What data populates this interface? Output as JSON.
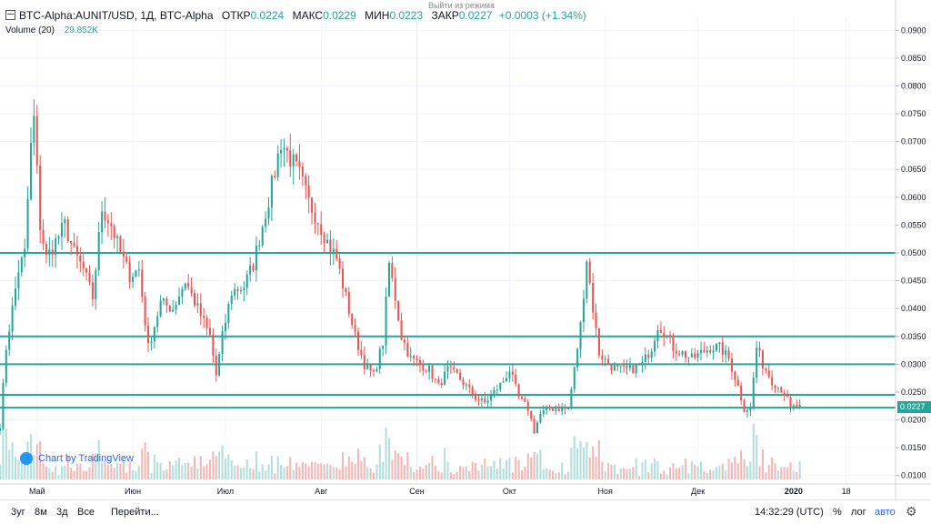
{
  "header": {
    "symbol": "BTC-Alpha:AUNIT/USD, 1Д, BTC-Alpha",
    "open_label": "ОТКР",
    "open": "0.0224",
    "high_label": "МАКС",
    "high": "0.0229",
    "low_label": "МИН",
    "low": "0.0223",
    "close_label": "ЗАКР",
    "close": "0.0227",
    "change": "+0.0003 (+1.34%)",
    "volume_label": "Volume (20)",
    "volume_value": "29.852K",
    "exit_tooltip": "Выйти из режима"
  },
  "badge": {
    "text": "Chart by TradingView"
  },
  "price_tag": "0.0227",
  "bottom_bar": {
    "ranges": [
      "3уг",
      "8м",
      "3д",
      "Все"
    ],
    "goto": "Перейти...",
    "time": "14:32:29 (UTC)",
    "percent": "%",
    "log": "лог",
    "auto": "авто"
  },
  "colors": {
    "up": "#26a69a",
    "down": "#ef5350",
    "vol_up": "#b2dfdb",
    "vol_down": "#f5b7b5",
    "hline": "#26a69a",
    "grid": "#f0f3fa"
  },
  "chart_data": {
    "type": "candlestick",
    "title": "BTC-Alpha:AUNIT/USD, 1Д, BTC-Alpha",
    "y_ticks": [
      "0.0900",
      "0.0850",
      "0.0800",
      "0.0750",
      "0.0700",
      "0.0650",
      "0.0600",
      "0.0550",
      "0.0500",
      "0.0450",
      "0.0400",
      "0.0350",
      "0.0300",
      "0.0250",
      "0.0200",
      "0.0150",
      "0.0100"
    ],
    "ylim": [
      0.0093,
      0.0925
    ],
    "x_ticks": [
      {
        "label": "Май",
        "day": 0
      },
      {
        "label": "Июн",
        "day": 31
      },
      {
        "label": "Июл",
        "day": 61
      },
      {
        "label": "Авг",
        "day": 92
      },
      {
        "label": "Сен",
        "day": 123
      },
      {
        "label": "Окт",
        "day": 153
      },
      {
        "label": "Ноя",
        "day": 184
      },
      {
        "label": "Дек",
        "day": 214
      },
      {
        "label": "2020",
        "day": 245
      },
      {
        "label": "18",
        "day": 262
      }
    ],
    "x_range_days": [
      -12,
      278
    ],
    "horizontal_lines": [
      0.05,
      0.035,
      0.03,
      0.0245,
      0.0222
    ],
    "last_price": 0.0227,
    "close_anchors": [
      [
        -12,
        0.019
      ],
      [
        -10,
        0.033
      ],
      [
        -8,
        0.04
      ],
      [
        -6,
        0.047
      ],
      [
        -4,
        0.05
      ],
      [
        -2,
        0.069
      ],
      [
        -1,
        0.074
      ],
      [
        1,
        0.055
      ],
      [
        3,
        0.049
      ],
      [
        6,
        0.052
      ],
      [
        9,
        0.055
      ],
      [
        12,
        0.05
      ],
      [
        15,
        0.047
      ],
      [
        18,
        0.042
      ],
      [
        21,
        0.058
      ],
      [
        24,
        0.055
      ],
      [
        27,
        0.05
      ],
      [
        30,
        0.046
      ],
      [
        33,
        0.047
      ],
      [
        36,
        0.033
      ],
      [
        40,
        0.041
      ],
      [
        44,
        0.04
      ],
      [
        48,
        0.045
      ],
      [
        52,
        0.04
      ],
      [
        56,
        0.035
      ],
      [
        58,
        0.028
      ],
      [
        60,
        0.035
      ],
      [
        63,
        0.043
      ],
      [
        67,
        0.044
      ],
      [
        70,
        0.048
      ],
      [
        73,
        0.055
      ],
      [
        76,
        0.062
      ],
      [
        79,
        0.07
      ],
      [
        82,
        0.067
      ],
      [
        85,
        0.064
      ],
      [
        88,
        0.059
      ],
      [
        91,
        0.056
      ],
      [
        94,
        0.052
      ],
      [
        97,
        0.049
      ],
      [
        100,
        0.042
      ],
      [
        103,
        0.035
      ],
      [
        106,
        0.03
      ],
      [
        109,
        0.028
      ],
      [
        112,
        0.034
      ],
      [
        114,
        0.048
      ],
      [
        116,
        0.042
      ],
      [
        118,
        0.035
      ],
      [
        121,
        0.031
      ],
      [
        124,
        0.03
      ],
      [
        127,
        0.029
      ],
      [
        130,
        0.026
      ],
      [
        133,
        0.029
      ],
      [
        136,
        0.028
      ],
      [
        139,
        0.026
      ],
      [
        142,
        0.024
      ],
      [
        145,
        0.023
      ],
      [
        148,
        0.025
      ],
      [
        151,
        0.027
      ],
      [
        153,
        0.029
      ],
      [
        156,
        0.024
      ],
      [
        159,
        0.022
      ],
      [
        161,
        0.018
      ],
      [
        163,
        0.021
      ],
      [
        166,
        0.022
      ],
      [
        169,
        0.022
      ],
      [
        172,
        0.022
      ],
      [
        174,
        0.029
      ],
      [
        176,
        0.037
      ],
      [
        178,
        0.049
      ],
      [
        180,
        0.04
      ],
      [
        182,
        0.032
      ],
      [
        185,
        0.03
      ],
      [
        188,
        0.029
      ],
      [
        192,
        0.029
      ],
      [
        196,
        0.03
      ],
      [
        199,
        0.033
      ],
      [
        201,
        0.037
      ],
      [
        203,
        0.036
      ],
      [
        206,
        0.033
      ],
      [
        209,
        0.032
      ],
      [
        212,
        0.031
      ],
      [
        215,
        0.032
      ],
      [
        218,
        0.033
      ],
      [
        221,
        0.033
      ],
      [
        224,
        0.031
      ],
      [
        227,
        0.026
      ],
      [
        229,
        0.022
      ],
      [
        231,
        0.022
      ],
      [
        233,
        0.033
      ],
      [
        235,
        0.03
      ],
      [
        238,
        0.027
      ],
      [
        240,
        0.026
      ],
      [
        242,
        0.025
      ],
      [
        244,
        0.022
      ],
      [
        247,
        0.0227
      ]
    ]
  }
}
